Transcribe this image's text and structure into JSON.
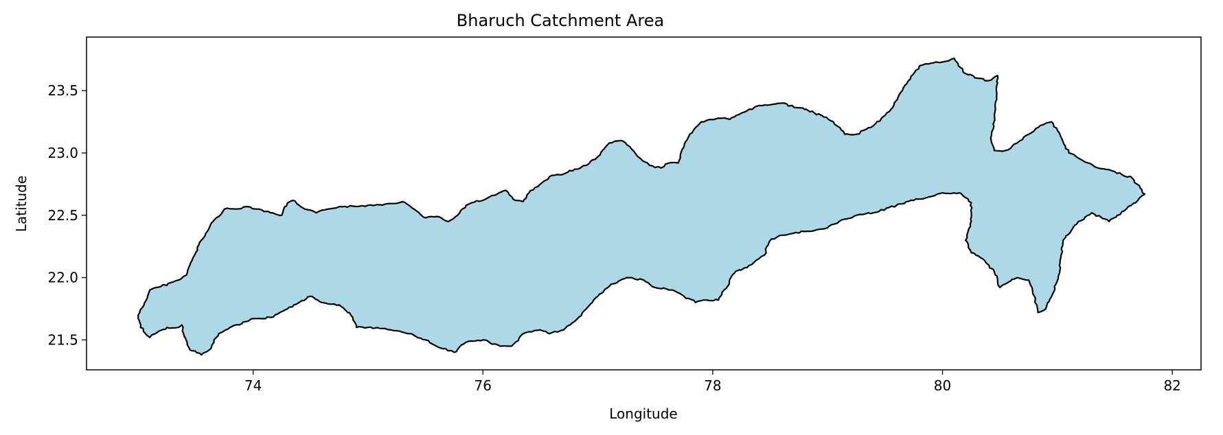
{
  "chart_data": {
    "type": "map",
    "title": "Bharuch Catchment Area",
    "xlabel": "Longitude",
    "ylabel": "Latitude",
    "xlim": [
      72.55,
      82.25
    ],
    "ylim": [
      21.26,
      23.93
    ],
    "xticks": [
      74,
      76,
      78,
      80,
      82
    ],
    "yticks": [
      21.5,
      22.0,
      22.5,
      23.0,
      23.5
    ],
    "xtick_labels": [
      "74",
      "76",
      "78",
      "80",
      "82"
    ],
    "ytick_labels": [
      "21.5",
      "22.0",
      "22.5",
      "23.0",
      "23.5"
    ],
    "grid": false,
    "fill_color": "#add8e6",
    "edge_color": "#000000",
    "boundary": [
      [
        73.0,
        21.7
      ],
      [
        73.05,
        21.78
      ],
      [
        73.08,
        21.84
      ],
      [
        73.1,
        21.9
      ],
      [
        73.2,
        21.93
      ],
      [
        73.35,
        21.98
      ],
      [
        73.42,
        22.02
      ],
      [
        73.45,
        22.1
      ],
      [
        73.5,
        22.2
      ],
      [
        73.55,
        22.3
      ],
      [
        73.6,
        22.37
      ],
      [
        73.65,
        22.45
      ],
      [
        73.75,
        22.55
      ],
      [
        73.85,
        22.55
      ],
      [
        73.95,
        22.57
      ],
      [
        74.05,
        22.55
      ],
      [
        74.15,
        22.52
      ],
      [
        74.25,
        22.5
      ],
      [
        74.3,
        22.6
      ],
      [
        74.35,
        22.62
      ],
      [
        74.4,
        22.58
      ],
      [
        74.45,
        22.55
      ],
      [
        74.55,
        22.52
      ],
      [
        74.65,
        22.55
      ],
      [
        74.75,
        22.57
      ],
      [
        74.9,
        22.57
      ],
      [
        75.0,
        22.58
      ],
      [
        75.15,
        22.59
      ],
      [
        75.3,
        22.61
      ],
      [
        75.4,
        22.55
      ],
      [
        75.5,
        22.48
      ],
      [
        75.6,
        22.49
      ],
      [
        75.7,
        22.45
      ],
      [
        75.78,
        22.5
      ],
      [
        75.82,
        22.55
      ],
      [
        75.9,
        22.6
      ],
      [
        76.0,
        22.62
      ],
      [
        76.1,
        22.66
      ],
      [
        76.2,
        22.7
      ],
      [
        76.28,
        22.62
      ],
      [
        76.35,
        22.61
      ],
      [
        76.4,
        22.68
      ],
      [
        76.45,
        22.72
      ],
      [
        76.5,
        22.75
      ],
      [
        76.6,
        22.82
      ],
      [
        76.7,
        22.83
      ],
      [
        76.8,
        22.87
      ],
      [
        76.9,
        22.9
      ],
      [
        77.0,
        22.97
      ],
      [
        77.1,
        23.08
      ],
      [
        77.2,
        23.1
      ],
      [
        77.28,
        23.05
      ],
      [
        77.35,
        22.97
      ],
      [
        77.45,
        22.9
      ],
      [
        77.55,
        22.88
      ],
      [
        77.62,
        22.92
      ],
      [
        77.7,
        22.92
      ],
      [
        77.75,
        23.05
      ],
      [
        77.8,
        23.15
      ],
      [
        77.9,
        23.25
      ],
      [
        78.05,
        23.28
      ],
      [
        78.15,
        23.27
      ],
      [
        78.25,
        23.32
      ],
      [
        78.4,
        23.38
      ],
      [
        78.6,
        23.4
      ],
      [
        78.8,
        23.35
      ],
      [
        78.95,
        23.3
      ],
      [
        79.05,
        23.25
      ],
      [
        79.15,
        23.15
      ],
      [
        79.25,
        23.15
      ],
      [
        79.4,
        23.22
      ],
      [
        79.55,
        23.35
      ],
      [
        79.65,
        23.5
      ],
      [
        79.8,
        23.7
      ],
      [
        79.9,
        23.72
      ],
      [
        80.0,
        23.73
      ],
      [
        80.1,
        23.76
      ],
      [
        80.18,
        23.65
      ],
      [
        80.3,
        23.6
      ],
      [
        80.4,
        23.58
      ],
      [
        80.48,
        23.62
      ],
      [
        80.47,
        23.45
      ],
      [
        80.45,
        23.25
      ],
      [
        80.42,
        23.12
      ],
      [
        80.45,
        23.02
      ],
      [
        80.55,
        23.02
      ],
      [
        80.65,
        23.08
      ],
      [
        80.75,
        23.15
      ],
      [
        80.85,
        23.22
      ],
      [
        80.95,
        23.25
      ],
      [
        81.0,
        23.18
      ],
      [
        81.1,
        23.0
      ],
      [
        81.2,
        22.95
      ],
      [
        81.35,
        22.88
      ],
      [
        81.5,
        22.85
      ],
      [
        81.65,
        22.8
      ],
      [
        81.72,
        22.72
      ],
      [
        81.76,
        22.67
      ],
      [
        81.7,
        22.62
      ],
      [
        81.6,
        22.55
      ],
      [
        81.45,
        22.45
      ],
      [
        81.3,
        22.52
      ],
      [
        81.15,
        22.42
      ],
      [
        81.05,
        22.3
      ],
      [
        81.02,
        22.05
      ],
      [
        80.95,
        21.85
      ],
      [
        80.9,
        21.75
      ],
      [
        80.83,
        21.72
      ],
      [
        80.8,
        21.85
      ],
      [
        80.75,
        21.98
      ],
      [
        80.65,
        22.0
      ],
      [
        80.55,
        21.95
      ],
      [
        80.5,
        21.92
      ],
      [
        80.45,
        22.05
      ],
      [
        80.35,
        22.15
      ],
      [
        80.25,
        22.2
      ],
      [
        80.2,
        22.3
      ],
      [
        80.25,
        22.45
      ],
      [
        80.25,
        22.6
      ],
      [
        80.15,
        22.68
      ],
      [
        80.0,
        22.68
      ],
      [
        79.9,
        22.65
      ],
      [
        79.75,
        22.62
      ],
      [
        79.6,
        22.58
      ],
      [
        79.4,
        22.52
      ],
      [
        79.25,
        22.5
      ],
      [
        79.1,
        22.45
      ],
      [
        79.0,
        22.4
      ],
      [
        78.8,
        22.37
      ],
      [
        78.6,
        22.34
      ],
      [
        78.5,
        22.3
      ],
      [
        78.45,
        22.18
      ],
      [
        78.4,
        22.15
      ],
      [
        78.3,
        22.08
      ],
      [
        78.2,
        22.05
      ],
      [
        78.1,
        21.9
      ],
      [
        78.05,
        21.82
      ],
      [
        77.95,
        21.82
      ],
      [
        77.85,
        21.8
      ],
      [
        77.75,
        21.85
      ],
      [
        77.65,
        21.9
      ],
      [
        77.5,
        21.92
      ],
      [
        77.4,
        21.98
      ],
      [
        77.25,
        22.0
      ],
      [
        77.1,
        21.93
      ],
      [
        77.0,
        21.85
      ],
      [
        76.9,
        21.75
      ],
      [
        76.8,
        21.65
      ],
      [
        76.7,
        21.58
      ],
      [
        76.58,
        21.55
      ],
      [
        76.5,
        21.58
      ],
      [
        76.35,
        21.55
      ],
      [
        76.25,
        21.45
      ],
      [
        76.15,
        21.45
      ],
      [
        76.0,
        21.5
      ],
      [
        75.85,
        21.48
      ],
      [
        75.75,
        21.4
      ],
      [
        75.65,
        21.43
      ],
      [
        75.5,
        21.5
      ],
      [
        75.35,
        21.55
      ],
      [
        75.2,
        21.58
      ],
      [
        75.0,
        21.6
      ],
      [
        74.9,
        21.6
      ],
      [
        74.85,
        21.7
      ],
      [
        74.75,
        21.78
      ],
      [
        74.6,
        21.8
      ],
      [
        74.5,
        21.85
      ],
      [
        74.4,
        21.8
      ],
      [
        74.3,
        21.75
      ],
      [
        74.15,
        21.68
      ],
      [
        74.0,
        21.67
      ],
      [
        73.9,
        21.63
      ],
      [
        73.8,
        21.6
      ],
      [
        73.7,
        21.55
      ],
      [
        73.62,
        21.42
      ],
      [
        73.55,
        21.38
      ],
      [
        73.45,
        21.42
      ],
      [
        73.4,
        21.53
      ],
      [
        73.38,
        21.62
      ],
      [
        73.35,
        21.6
      ],
      [
        73.25,
        21.6
      ],
      [
        73.15,
        21.55
      ],
      [
        73.1,
        21.52
      ],
      [
        73.02,
        21.6
      ]
    ]
  }
}
